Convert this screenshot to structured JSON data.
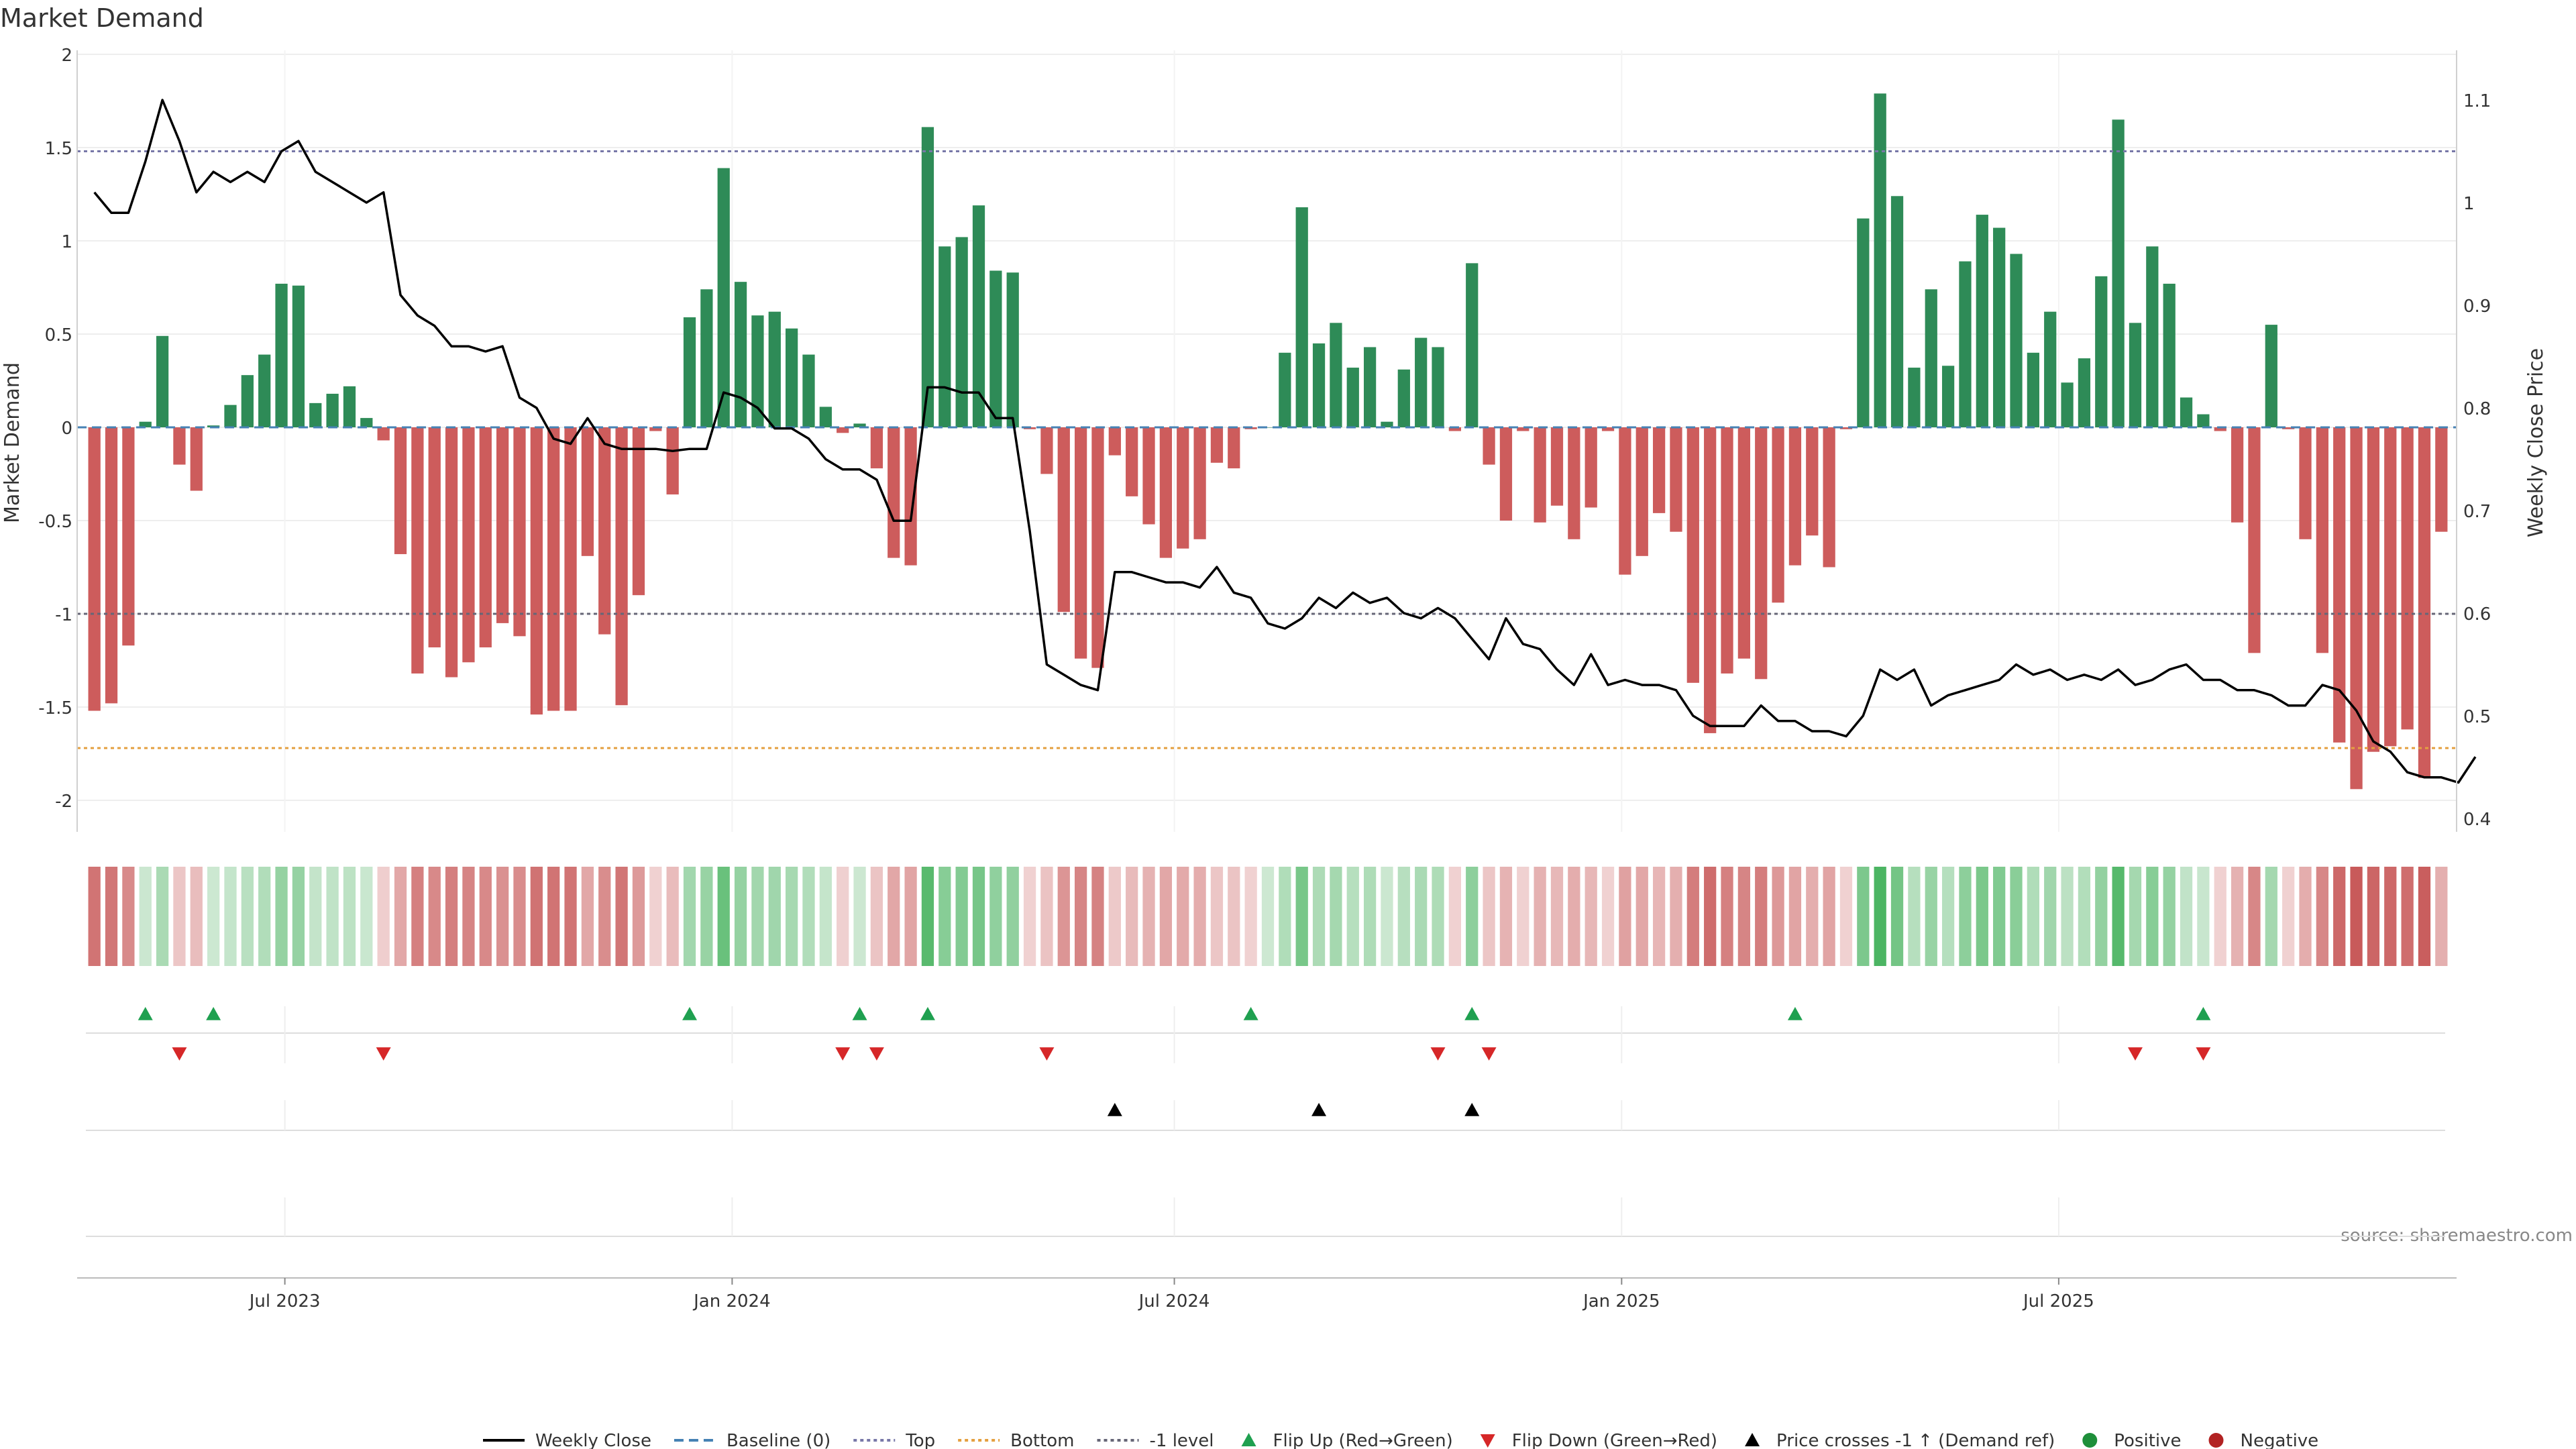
{
  "chart_data": {
    "type": "bar+line",
    "title": "Market Demand",
    "ylabel_left": "Market Demand",
    "ylabel_right": "Weekly Close Price",
    "ylim_left": [
      -2.2,
      2.1
    ],
    "yticks_left": [
      "2",
      "1.5",
      "1",
      "0.5",
      "0",
      "-0.5",
      "-1",
      "-1.5",
      "-2"
    ],
    "ylim_right": [
      0.4,
      1.15
    ],
    "yticks_right": [
      "1.1",
      "1",
      "0.9",
      "0.8",
      "0.7",
      "0.6",
      "0.5",
      "0.4"
    ],
    "xticks": [
      {
        "label": "Jul 2023",
        "week": 11.7
      },
      {
        "label": "Jan 2024",
        "week": 38
      },
      {
        "label": "Jul 2024",
        "week": 64
      },
      {
        "label": "Jan 2025",
        "week": 90.3
      },
      {
        "label": "Jul 2025",
        "week": 116
      }
    ],
    "reference_lines": {
      "top": 1.48,
      "minus_one": -1.0,
      "bottom": -1.72
    },
    "demand": [
      -1.52,
      -1.48,
      -1.17,
      0.03,
      0.49,
      -0.2,
      -0.34,
      0.01,
      0.12,
      0.28,
      0.39,
      0.77,
      0.76,
      0.13,
      0.18,
      0.22,
      0.05,
      -0.07,
      -0.68,
      -1.32,
      -1.18,
      -1.34,
      -1.26,
      -1.18,
      -1.05,
      -1.12,
      -1.54,
      -1.52,
      -1.52,
      -0.69,
      -1.11,
      -1.49,
      -0.9,
      -0.02,
      -0.36,
      0.59,
      0.74,
      1.39,
      0.78,
      0.6,
      0.62,
      0.53,
      0.39,
      0.11,
      -0.03,
      0.02,
      -0.22,
      -0.7,
      -0.74,
      1.61,
      0.97,
      1.02,
      1.19,
      0.84,
      0.83,
      -0.01,
      -0.25,
      -0.99,
      -1.24,
      -1.29,
      -0.15,
      -0.37,
      -0.52,
      -0.7,
      -0.65,
      -0.6,
      -0.19,
      -0.22,
      -0.01,
      0.0,
      0.4,
      1.18,
      0.45,
      0.56,
      0.32,
      0.43,
      0.03,
      0.31,
      0.48,
      0.43,
      -0.02,
      0.88,
      -0.2,
      -0.5,
      -0.02,
      -0.51,
      -0.42,
      -0.6,
      -0.43,
      -0.02,
      -0.79,
      -0.69,
      -0.46,
      -0.56,
      -1.37,
      -1.64,
      -1.32,
      -1.24,
      -1.35,
      -0.94,
      -0.74,
      -0.58,
      -0.75,
      -0.01,
      1.12,
      1.79,
      1.24,
      0.32,
      0.74,
      0.33,
      0.89,
      1.14,
      1.07,
      0.93,
      0.4,
      0.62,
      0.24,
      0.37,
      0.81,
      1.65,
      0.56,
      0.97,
      0.77,
      0.16,
      0.07,
      -0.02,
      -0.51,
      -1.21,
      0.55,
      -0.01,
      -0.6,
      -1.21,
      -1.69,
      -1.94,
      -1.74,
      -1.71,
      -1.62,
      -1.88,
      -0.56
    ],
    "weekly_close": [
      1.01,
      0.99,
      0.99,
      1.04,
      1.1,
      1.06,
      1.01,
      1.03,
      1.02,
      1.03,
      1.02,
      1.05,
      1.06,
      1.03,
      1.02,
      1.01,
      1.0,
      1.01,
      0.91,
      0.89,
      0.88,
      0.86,
      0.86,
      0.855,
      0.86,
      0.81,
      0.8,
      0.77,
      0.765,
      0.79,
      0.765,
      0.76,
      0.76,
      0.76,
      0.758,
      0.76,
      0.76,
      0.815,
      0.81,
      0.8,
      0.78,
      0.78,
      0.77,
      0.75,
      0.74,
      0.74,
      0.73,
      0.69,
      0.69,
      0.82,
      0.82,
      0.815,
      0.815,
      0.79,
      0.79,
      0.68,
      0.55,
      0.54,
      0.53,
      0.525,
      0.64,
      0.64,
      0.635,
      0.63,
      0.63,
      0.625,
      0.645,
      0.62,
      0.615,
      0.59,
      0.585,
      0.595,
      0.615,
      0.605,
      0.62,
      0.61,
      0.615,
      0.6,
      0.595,
      0.605,
      0.595,
      0.575,
      0.555,
      0.595,
      0.57,
      0.565,
      0.545,
      0.53,
      0.56,
      0.53,
      0.535,
      0.53,
      0.53,
      0.525,
      0.5,
      0.49,
      0.49,
      0.49,
      0.51,
      0.495,
      0.495,
      0.485,
      0.485,
      0.48,
      0.5,
      0.545,
      0.535,
      0.545,
      0.51,
      0.52,
      0.525,
      0.53,
      0.535,
      0.55,
      0.54,
      0.545,
      0.535,
      0.54,
      0.535,
      0.545,
      0.53,
      0.535,
      0.545,
      0.55,
      0.535,
      0.535,
      0.525,
      0.525,
      0.52,
      0.51,
      0.51,
      0.53,
      0.525,
      0.505,
      0.475,
      0.465,
      0.445,
      0.44,
      0.44,
      0.435,
      0.46
    ],
    "signals": {
      "flip_up_weeks": [
        3,
        7,
        35,
        45,
        49,
        68,
        81,
        100,
        124
      ],
      "flip_down_weeks": [
        5,
        17,
        44,
        46,
        56,
        79,
        82,
        120,
        124
      ],
      "price_cross_weeks": [
        60,
        72,
        81
      ]
    },
    "colors": {
      "positive": "#2e8b57",
      "negative": "#cd5c5c",
      "line": "#000000",
      "top": "#7878a8",
      "bottom": "#e4a040",
      "minus_one": "#666677",
      "flip_up": "#1fa050",
      "flip_down": "#d62728",
      "cross": "#000000"
    },
    "legend": [
      {
        "label": "Weekly Close",
        "style": "line-solid"
      },
      {
        "label": "Baseline (0)",
        "style": "line-dash-blue"
      },
      {
        "label": "Top",
        "style": "line-dot-top"
      },
      {
        "label": "Bottom",
        "style": "line-dot-bottom"
      },
      {
        "label": "-1 level",
        "style": "line-dot-minus"
      },
      {
        "label": "Flip Up (Red→Green)",
        "style": "tri-up-green"
      },
      {
        "label": "Flip Down (Green→Red)",
        "style": "tri-down-red"
      },
      {
        "label": "Price crosses -1 ↑ (Demand ref)",
        "style": "tri-up-black"
      },
      {
        "label": "Positive",
        "style": "dot-green"
      },
      {
        "label": "Negative",
        "style": "dot-red"
      }
    ],
    "legend_position": "bottom-center",
    "source": "source: sharemaestro.com"
  }
}
